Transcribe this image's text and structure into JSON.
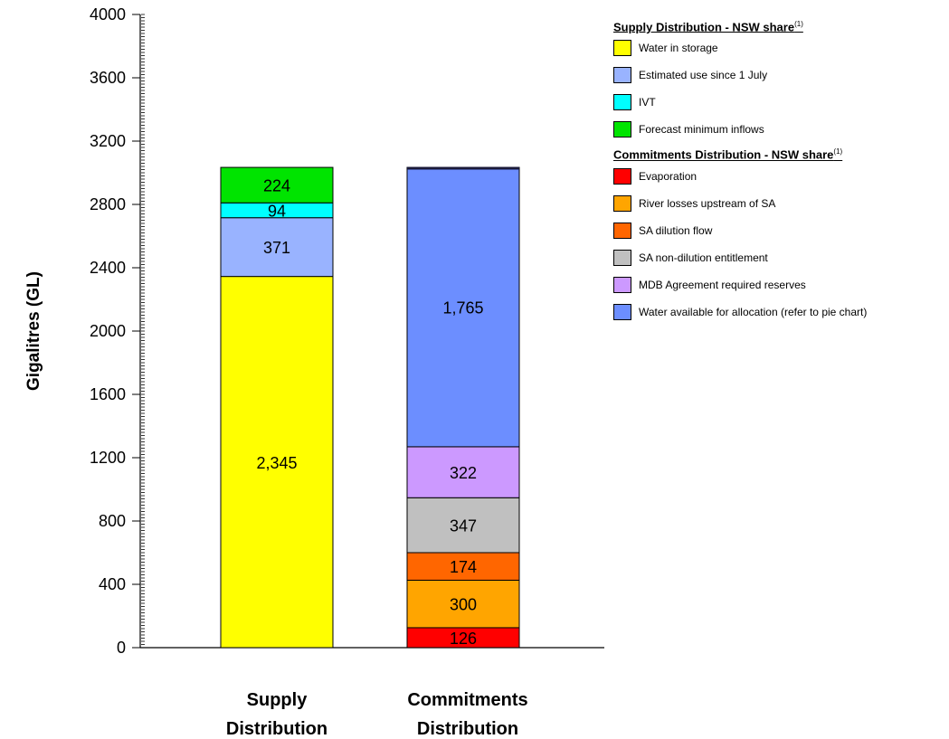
{
  "chart_data": {
    "type": "bar",
    "stacked": true,
    "ylabel": "Gigalitres (GL)",
    "ylim": [
      0,
      4000
    ],
    "yticks": [
      "0",
      "400",
      "800",
      "1200",
      "1600",
      "2000",
      "2400",
      "2800",
      "3200",
      "3600",
      "4000"
    ],
    "bars": [
      {
        "category": [
          "Supply",
          "Distribution"
        ],
        "segments": [
          {
            "name": "Water in storage",
            "value": 2345,
            "label": "2,345",
            "color": "#FFFF00"
          },
          {
            "name": "Estimated use since 1 July",
            "value": 371,
            "label": "371",
            "color": "#99B3FF"
          },
          {
            "name": "IVT",
            "value": 94,
            "label": "94",
            "color": "#00FFFF"
          },
          {
            "name": "Forecast minimum inflows",
            "value": 224,
            "label": "224",
            "color": "#00E400"
          }
        ]
      },
      {
        "category": [
          "Commitments",
          "Distribution"
        ],
        "segments": [
          {
            "name": "Evaporation",
            "value": 126,
            "label": "126",
            "color": "#FF0000"
          },
          {
            "name": "River losses upstream of SA",
            "value": 300,
            "label": "300",
            "color": "#FFA500"
          },
          {
            "name": "SA dilution flow",
            "value": 174,
            "label": "174",
            "color": "#FF6600"
          },
          {
            "name": "SA non-dilution entitlement",
            "value": 347,
            "label": "347",
            "color": "#C0C0C0"
          },
          {
            "name": "MDB Agreement required reserves",
            "value": 322,
            "label": "322",
            "color": "#CC99FF"
          },
          {
            "name": "Water available for allocation (refer to pie chart)",
            "value": 1765,
            "label": "1,765",
            "color": "#6C8EFF"
          }
        ]
      }
    ]
  },
  "legend": {
    "supply": {
      "title": "Supply Distribution - NSW share",
      "footnote": "(1)",
      "items": [
        {
          "label": "Water in storage",
          "color": "#FFFF00"
        },
        {
          "label": "Estimated use since 1 July",
          "color": "#99B3FF"
        },
        {
          "label": "IVT",
          "color": "#00FFFF"
        },
        {
          "label": "Forecast minimum inflows",
          "color": "#00E400"
        }
      ]
    },
    "commitments": {
      "title": "Commitments Distribution - NSW share",
      "footnote": "(1)",
      "items": [
        {
          "label": "Evaporation",
          "color": "#FF0000"
        },
        {
          "label": "River losses upstream of SA",
          "color": "#FFA500"
        },
        {
          "label": "SA dilution flow",
          "color": "#FF6600"
        },
        {
          "label": "SA non-dilution entitlement",
          "color": "#C0C0C0"
        },
        {
          "label": "MDB Agreement required reserves",
          "color": "#CC99FF"
        },
        {
          "label": "Water available for allocation (refer to pie chart)",
          "color": "#6C8EFF"
        }
      ]
    }
  }
}
